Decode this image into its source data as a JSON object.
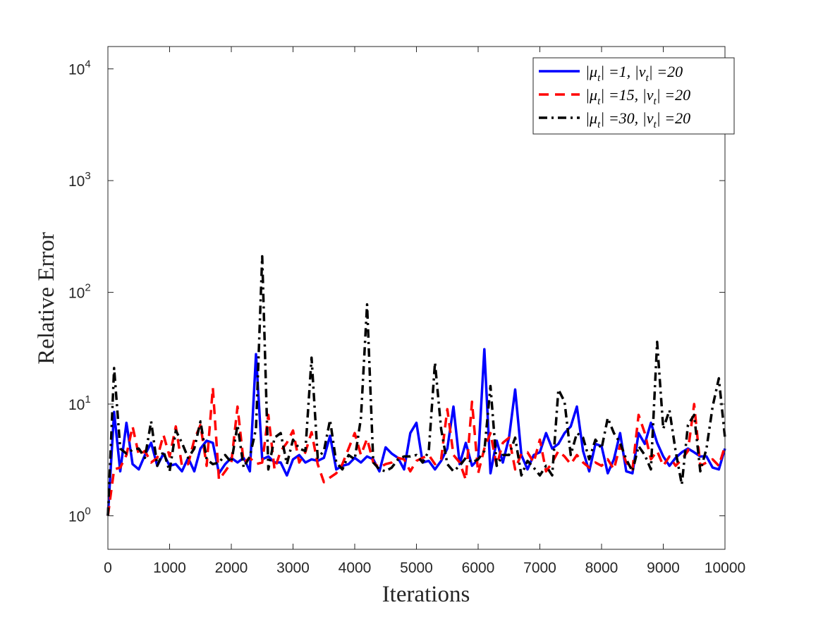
{
  "chart_data": {
    "type": "line",
    "title": "",
    "xlabel": "Iterations",
    "ylabel": "Relative Error",
    "xlim": [
      0,
      10000
    ],
    "ylog": true,
    "ylim_exp": [
      -0.3,
      4.2
    ],
    "xticks": [
      0,
      1000,
      2000,
      3000,
      4000,
      5000,
      6000,
      7000,
      8000,
      9000,
      10000
    ],
    "xtick_labels": [
      "0",
      "1000",
      "2000",
      "3000",
      "4000",
      "5000",
      "6000",
      "7000",
      "8000",
      "9000",
      "10000"
    ],
    "yticks": [
      1,
      10,
      100,
      1000,
      10000
    ],
    "ytick_labels": [
      {
        "base": "10",
        "exp": "0"
      },
      {
        "base": "10",
        "exp": "1"
      },
      {
        "base": "10",
        "exp": "2"
      },
      {
        "base": "10",
        "exp": "3"
      },
      {
        "base": "10",
        "exp": "4"
      }
    ],
    "grid": false,
    "legend_position": "top-right",
    "x": [
      0,
      100,
      200,
      300,
      400,
      500,
      600,
      700,
      800,
      900,
      1000,
      1100,
      1200,
      1300,
      1400,
      1500,
      1600,
      1700,
      1800,
      1900,
      2000,
      2100,
      2200,
      2300,
      2400,
      2500,
      2600,
      2700,
      2800,
      2900,
      3000,
      3100,
      3200,
      3300,
      3400,
      3500,
      3600,
      3700,
      3800,
      3900,
      4000,
      4100,
      4200,
      4300,
      4400,
      4500,
      4600,
      4700,
      4800,
      4900,
      5000,
      5100,
      5200,
      5300,
      5400,
      5500,
      5600,
      5700,
      5800,
      5900,
      6000,
      6100,
      6200,
      6300,
      6400,
      6500,
      6600,
      6700,
      6800,
      6900,
      7000,
      7100,
      7200,
      7300,
      7400,
      7500,
      7600,
      7700,
      7800,
      7900,
      8000,
      8100,
      8200,
      8300,
      8400,
      8500,
      8600,
      8700,
      8800,
      8900,
      9000,
      9100,
      9200,
      9300,
      9400,
      9500,
      9600,
      9700,
      9800,
      9900,
      10000
    ],
    "series": [
      {
        "name": "|μt| =1, |νt| =20",
        "legend_parts": {
          "mu_sub": "t",
          "nu_sub": "t",
          "mu_val": "=1,",
          "nu_val": "=20"
        },
        "color": "#0000ff",
        "dash": "solid",
        "values": [
          1.0,
          8.5,
          2.5,
          6.8,
          2.9,
          2.6,
          3.5,
          4.5,
          2.8,
          3.6,
          2.8,
          2.9,
          2.5,
          3.3,
          2.5,
          4.0,
          4.7,
          4.5,
          2.4,
          2.9,
          3.3,
          3.0,
          3.3,
          2.5,
          28.0,
          3.2,
          3.4,
          3.0,
          3.0,
          2.3,
          3.2,
          3.5,
          3.0,
          3.2,
          3.1,
          3.3,
          5.2,
          2.6,
          2.8,
          2.9,
          3.3,
          3.0,
          3.4,
          3.2,
          2.5,
          4.1,
          3.6,
          3.3,
          2.6,
          5.5,
          6.8,
          3.0,
          3.1,
          2.6,
          3.1,
          4.0,
          9.5,
          2.9,
          4.5,
          2.8,
          3.2,
          31.0,
          2.4,
          4.7,
          3.0,
          5.0,
          13.5,
          3.5,
          2.6,
          3.5,
          3.7,
          5.5,
          4.0,
          4.4,
          5.5,
          6.3,
          9.5,
          3.8,
          2.5,
          4.4,
          4.2,
          2.4,
          3.2,
          5.5,
          2.5,
          2.4,
          5.5,
          4.4,
          6.8,
          4.5,
          3.4,
          2.8,
          3.3,
          3.7,
          4.0,
          3.7,
          3.4,
          3.4,
          2.7,
          2.6,
          4.0
        ]
      },
      {
        "name": "|μt| =15, |νt| =20",
        "legend_parts": {
          "mu_sub": "t",
          "nu_sub": "t",
          "mu_val": "=15,",
          "nu_val": "=20"
        },
        "color": "#ff0000",
        "dash": "dashed",
        "values": [
          1.0,
          2.6,
          2.7,
          3.5,
          6.3,
          3.5,
          3.8,
          3.0,
          3.3,
          5.3,
          3.4,
          6.3,
          2.8,
          2.9,
          4.8,
          6.5,
          2.8,
          14.0,
          2.1,
          2.5,
          3.0,
          9.5,
          3.0,
          3.3,
          2.9,
          3.0,
          8.0,
          2.6,
          3.8,
          4.5,
          5.8,
          3.0,
          3.7,
          5.6,
          2.9,
          2.0,
          2.2,
          2.4,
          2.9,
          4.0,
          5.5,
          3.5,
          4.9,
          3.0,
          2.7,
          2.9,
          3.0,
          3.3,
          3.2,
          2.5,
          3.1,
          3.3,
          3.5,
          2.9,
          3.2,
          9.0,
          3.5,
          3.0,
          2.1,
          10.5,
          2.4,
          4.0,
          5.5,
          2.8,
          4.5,
          5.0,
          2.6,
          3.6,
          3.7,
          3.0,
          4.8,
          2.5,
          3.0,
          3.8,
          3.4,
          2.9,
          3.5,
          3.0,
          2.7,
          3.0,
          2.8,
          3.2,
          2.6,
          4.3,
          3.0,
          2.6,
          8.0,
          5.5,
          3.2,
          3.8,
          2.8,
          3.4,
          2.8,
          3.2,
          3.8,
          10.0,
          2.8,
          3.0,
          3.2,
          2.8,
          4.2
        ]
      },
      {
        "name": "|μt| =30, |νt| =20",
        "legend_parts": {
          "mu_sub": "t",
          "nu_sub": "t",
          "mu_val": "=30,",
          "nu_val": "=20"
        },
        "color": "#000000",
        "dash": "dashdot",
        "values": [
          1.0,
          21.0,
          4.0,
          3.6,
          3.9,
          4.0,
          3.3,
          7.0,
          2.8,
          3.8,
          2.5,
          5.8,
          4.5,
          3.3,
          4.0,
          7.0,
          3.2,
          2.9,
          3.0,
          3.5,
          3.0,
          6.5,
          2.7,
          3.4,
          6.0,
          210.0,
          2.6,
          5.0,
          5.5,
          2.9,
          4.8,
          4.0,
          3.8,
          26.0,
          3.3,
          3.8,
          7.2,
          3.0,
          2.6,
          3.5,
          3.2,
          7.5,
          78.0,
          3.0,
          2.6,
          2.5,
          2.7,
          3.2,
          3.4,
          3.4,
          3.5,
          3.0,
          3.8,
          23.5,
          6.0,
          2.9,
          2.5,
          2.8,
          3.3,
          3.0,
          3.2,
          3.8,
          14.5,
          2.8,
          3.5,
          3.5,
          5.0,
          2.3,
          3.1,
          2.7,
          2.3,
          2.8,
          2.3,
          13.5,
          10.5,
          3.5,
          5.5,
          5.0,
          3.2,
          4.8,
          4.0,
          7.5,
          5.5,
          4.5,
          3.2,
          2.5,
          4.2,
          3.5,
          2.6,
          36.0,
          6.0,
          8.8,
          3.8,
          1.9,
          6.5,
          8.0,
          2.5,
          4.0,
          9.5,
          17.0,
          5.0
        ]
      }
    ]
  }
}
